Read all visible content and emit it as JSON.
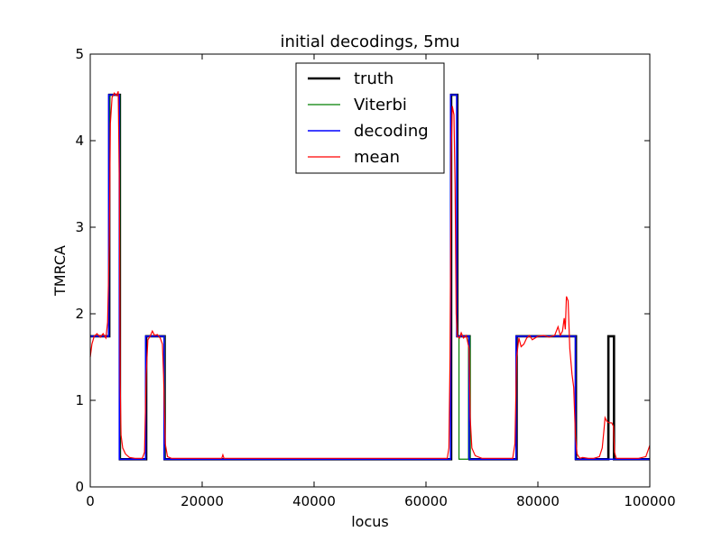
{
  "chart_data": {
    "type": "line",
    "title": "initial decodings, 5mu",
    "xlabel": "locus",
    "ylabel": "TMRCA",
    "xlim": [
      0,
      100000
    ],
    "ylim": [
      0,
      5
    ],
    "xticks": [
      0,
      20000,
      40000,
      60000,
      80000,
      100000
    ],
    "yticks": [
      0,
      1,
      2,
      3,
      4,
      5
    ],
    "grid": false,
    "legend_position": "top-center",
    "series": [
      {
        "name": "truth",
        "color": "#000000",
        "points": [
          [
            0,
            1.74
          ],
          [
            3400,
            1.74
          ],
          [
            3400,
            4.53
          ],
          [
            5300,
            4.53
          ],
          [
            5300,
            0.32
          ],
          [
            10000,
            0.32
          ],
          [
            10000,
            1.74
          ],
          [
            13300,
            1.74
          ],
          [
            13300,
            0.32
          ],
          [
            64500,
            0.32
          ],
          [
            64500,
            4.53
          ],
          [
            65600,
            4.53
          ],
          [
            65600,
            1.74
          ],
          [
            67800,
            1.74
          ],
          [
            67800,
            0.32
          ],
          [
            76200,
            0.32
          ],
          [
            76200,
            1.74
          ],
          [
            86800,
            1.74
          ],
          [
            86800,
            0.32
          ],
          [
            92600,
            0.32
          ],
          [
            92600,
            1.74
          ],
          [
            93600,
            1.74
          ],
          [
            93600,
            0.32
          ],
          [
            100000,
            0.32
          ]
        ]
      },
      {
        "name": "Viterbi",
        "color": "#007f00",
        "points": [
          [
            0,
            1.74
          ],
          [
            3300,
            1.74
          ],
          [
            3500,
            4.53
          ],
          [
            5300,
            4.53
          ],
          [
            5300,
            0.32
          ],
          [
            9900,
            0.32
          ],
          [
            9900,
            1.74
          ],
          [
            13300,
            1.74
          ],
          [
            13300,
            0.32
          ],
          [
            64400,
            0.32
          ],
          [
            64400,
            4.53
          ],
          [
            65500,
            4.53
          ],
          [
            65500,
            1.74
          ],
          [
            65900,
            1.74
          ],
          [
            65900,
            0.32
          ],
          [
            67600,
            0.32
          ],
          [
            67600,
            1.74
          ],
          [
            67900,
            1.74
          ],
          [
            67900,
            0.32
          ],
          [
            76100,
            0.32
          ],
          [
            76100,
            1.74
          ],
          [
            86700,
            1.74
          ],
          [
            86700,
            0.32
          ],
          [
            100000,
            0.32
          ]
        ]
      },
      {
        "name": "decoding",
        "color": "#0000ff",
        "points": [
          [
            0,
            1.74
          ],
          [
            3300,
            1.74
          ],
          [
            3300,
            4.53
          ],
          [
            5200,
            4.53
          ],
          [
            5200,
            0.32
          ],
          [
            9900,
            0.32
          ],
          [
            9900,
            1.74
          ],
          [
            13200,
            1.74
          ],
          [
            13200,
            0.32
          ],
          [
            64400,
            0.32
          ],
          [
            64400,
            4.53
          ],
          [
            65500,
            4.53
          ],
          [
            65500,
            1.74
          ],
          [
            67700,
            1.74
          ],
          [
            67700,
            0.32
          ],
          [
            76100,
            0.32
          ],
          [
            76100,
            1.74
          ],
          [
            86700,
            1.74
          ],
          [
            86700,
            0.32
          ],
          [
            100000,
            0.32
          ]
        ]
      },
      {
        "name": "mean",
        "color": "#ff0000",
        "points": [
          [
            0,
            1.5
          ],
          [
            300,
            1.65
          ],
          [
            700,
            1.74
          ],
          [
            1200,
            1.77
          ],
          [
            1800,
            1.73
          ],
          [
            2300,
            1.77
          ],
          [
            2800,
            1.72
          ],
          [
            3100,
            1.9
          ],
          [
            3400,
            2.8
          ],
          [
            3600,
            4.2
          ],
          [
            3900,
            4.5
          ],
          [
            4300,
            4.55
          ],
          [
            4700,
            4.52
          ],
          [
            5000,
            4.57
          ],
          [
            5200,
            3.5
          ],
          [
            5350,
            1.2
          ],
          [
            5500,
            0.6
          ],
          [
            5800,
            0.45
          ],
          [
            6300,
            0.38
          ],
          [
            7000,
            0.34
          ],
          [
            8000,
            0.33
          ],
          [
            9300,
            0.33
          ],
          [
            9700,
            0.4
          ],
          [
            10000,
            1.3
          ],
          [
            10300,
            1.7
          ],
          [
            10700,
            1.74
          ],
          [
            11100,
            1.8
          ],
          [
            11500,
            1.75
          ],
          [
            12000,
            1.76
          ],
          [
            12500,
            1.72
          ],
          [
            12900,
            1.65
          ],
          [
            13100,
            1.3
          ],
          [
            13400,
            0.5
          ],
          [
            13800,
            0.35
          ],
          [
            14500,
            0.33
          ],
          [
            23500,
            0.33
          ],
          [
            23700,
            0.37
          ],
          [
            23900,
            0.33
          ],
          [
            40000,
            0.33
          ],
          [
            60000,
            0.33
          ],
          [
            63800,
            0.33
          ],
          [
            64100,
            0.45
          ],
          [
            64300,
            1.5
          ],
          [
            64500,
            3.8
          ],
          [
            64700,
            4.4
          ],
          [
            65000,
            4.3
          ],
          [
            65200,
            3.5
          ],
          [
            65400,
            2.0
          ],
          [
            65600,
            1.74
          ],
          [
            66000,
            1.72
          ],
          [
            66300,
            1.78
          ],
          [
            66700,
            1.72
          ],
          [
            67200,
            1.75
          ],
          [
            67700,
            1.6
          ],
          [
            67900,
            0.8
          ],
          [
            68200,
            0.45
          ],
          [
            68800,
            0.36
          ],
          [
            70000,
            0.33
          ],
          [
            75500,
            0.33
          ],
          [
            75900,
            0.5
          ],
          [
            76200,
            1.5
          ],
          [
            76600,
            1.72
          ],
          [
            77000,
            1.62
          ],
          [
            77500,
            1.65
          ],
          [
            78000,
            1.72
          ],
          [
            78500,
            1.75
          ],
          [
            79000,
            1.7
          ],
          [
            80000,
            1.74
          ],
          [
            81000,
            1.75
          ],
          [
            82000,
            1.73
          ],
          [
            83000,
            1.75
          ],
          [
            83600,
            1.85
          ],
          [
            84000,
            1.75
          ],
          [
            84400,
            1.8
          ],
          [
            84700,
            1.95
          ],
          [
            84900,
            1.82
          ],
          [
            85100,
            2.2
          ],
          [
            85400,
            2.15
          ],
          [
            85700,
            1.6
          ],
          [
            86100,
            1.3
          ],
          [
            86400,
            1.15
          ],
          [
            86700,
            0.6
          ],
          [
            87000,
            0.38
          ],
          [
            87500,
            0.33
          ],
          [
            88000,
            0.34
          ],
          [
            89000,
            0.33
          ],
          [
            90000,
            0.33
          ],
          [
            91000,
            0.35
          ],
          [
            91500,
            0.45
          ],
          [
            91800,
            0.65
          ],
          [
            92000,
            0.8
          ],
          [
            92300,
            0.76
          ],
          [
            92700,
            0.74
          ],
          [
            93200,
            0.74
          ],
          [
            93500,
            0.7
          ],
          [
            93700,
            0.4
          ],
          [
            94000,
            0.33
          ],
          [
            98000,
            0.33
          ],
          [
            99300,
            0.35
          ],
          [
            100000,
            0.48
          ]
        ]
      }
    ]
  }
}
